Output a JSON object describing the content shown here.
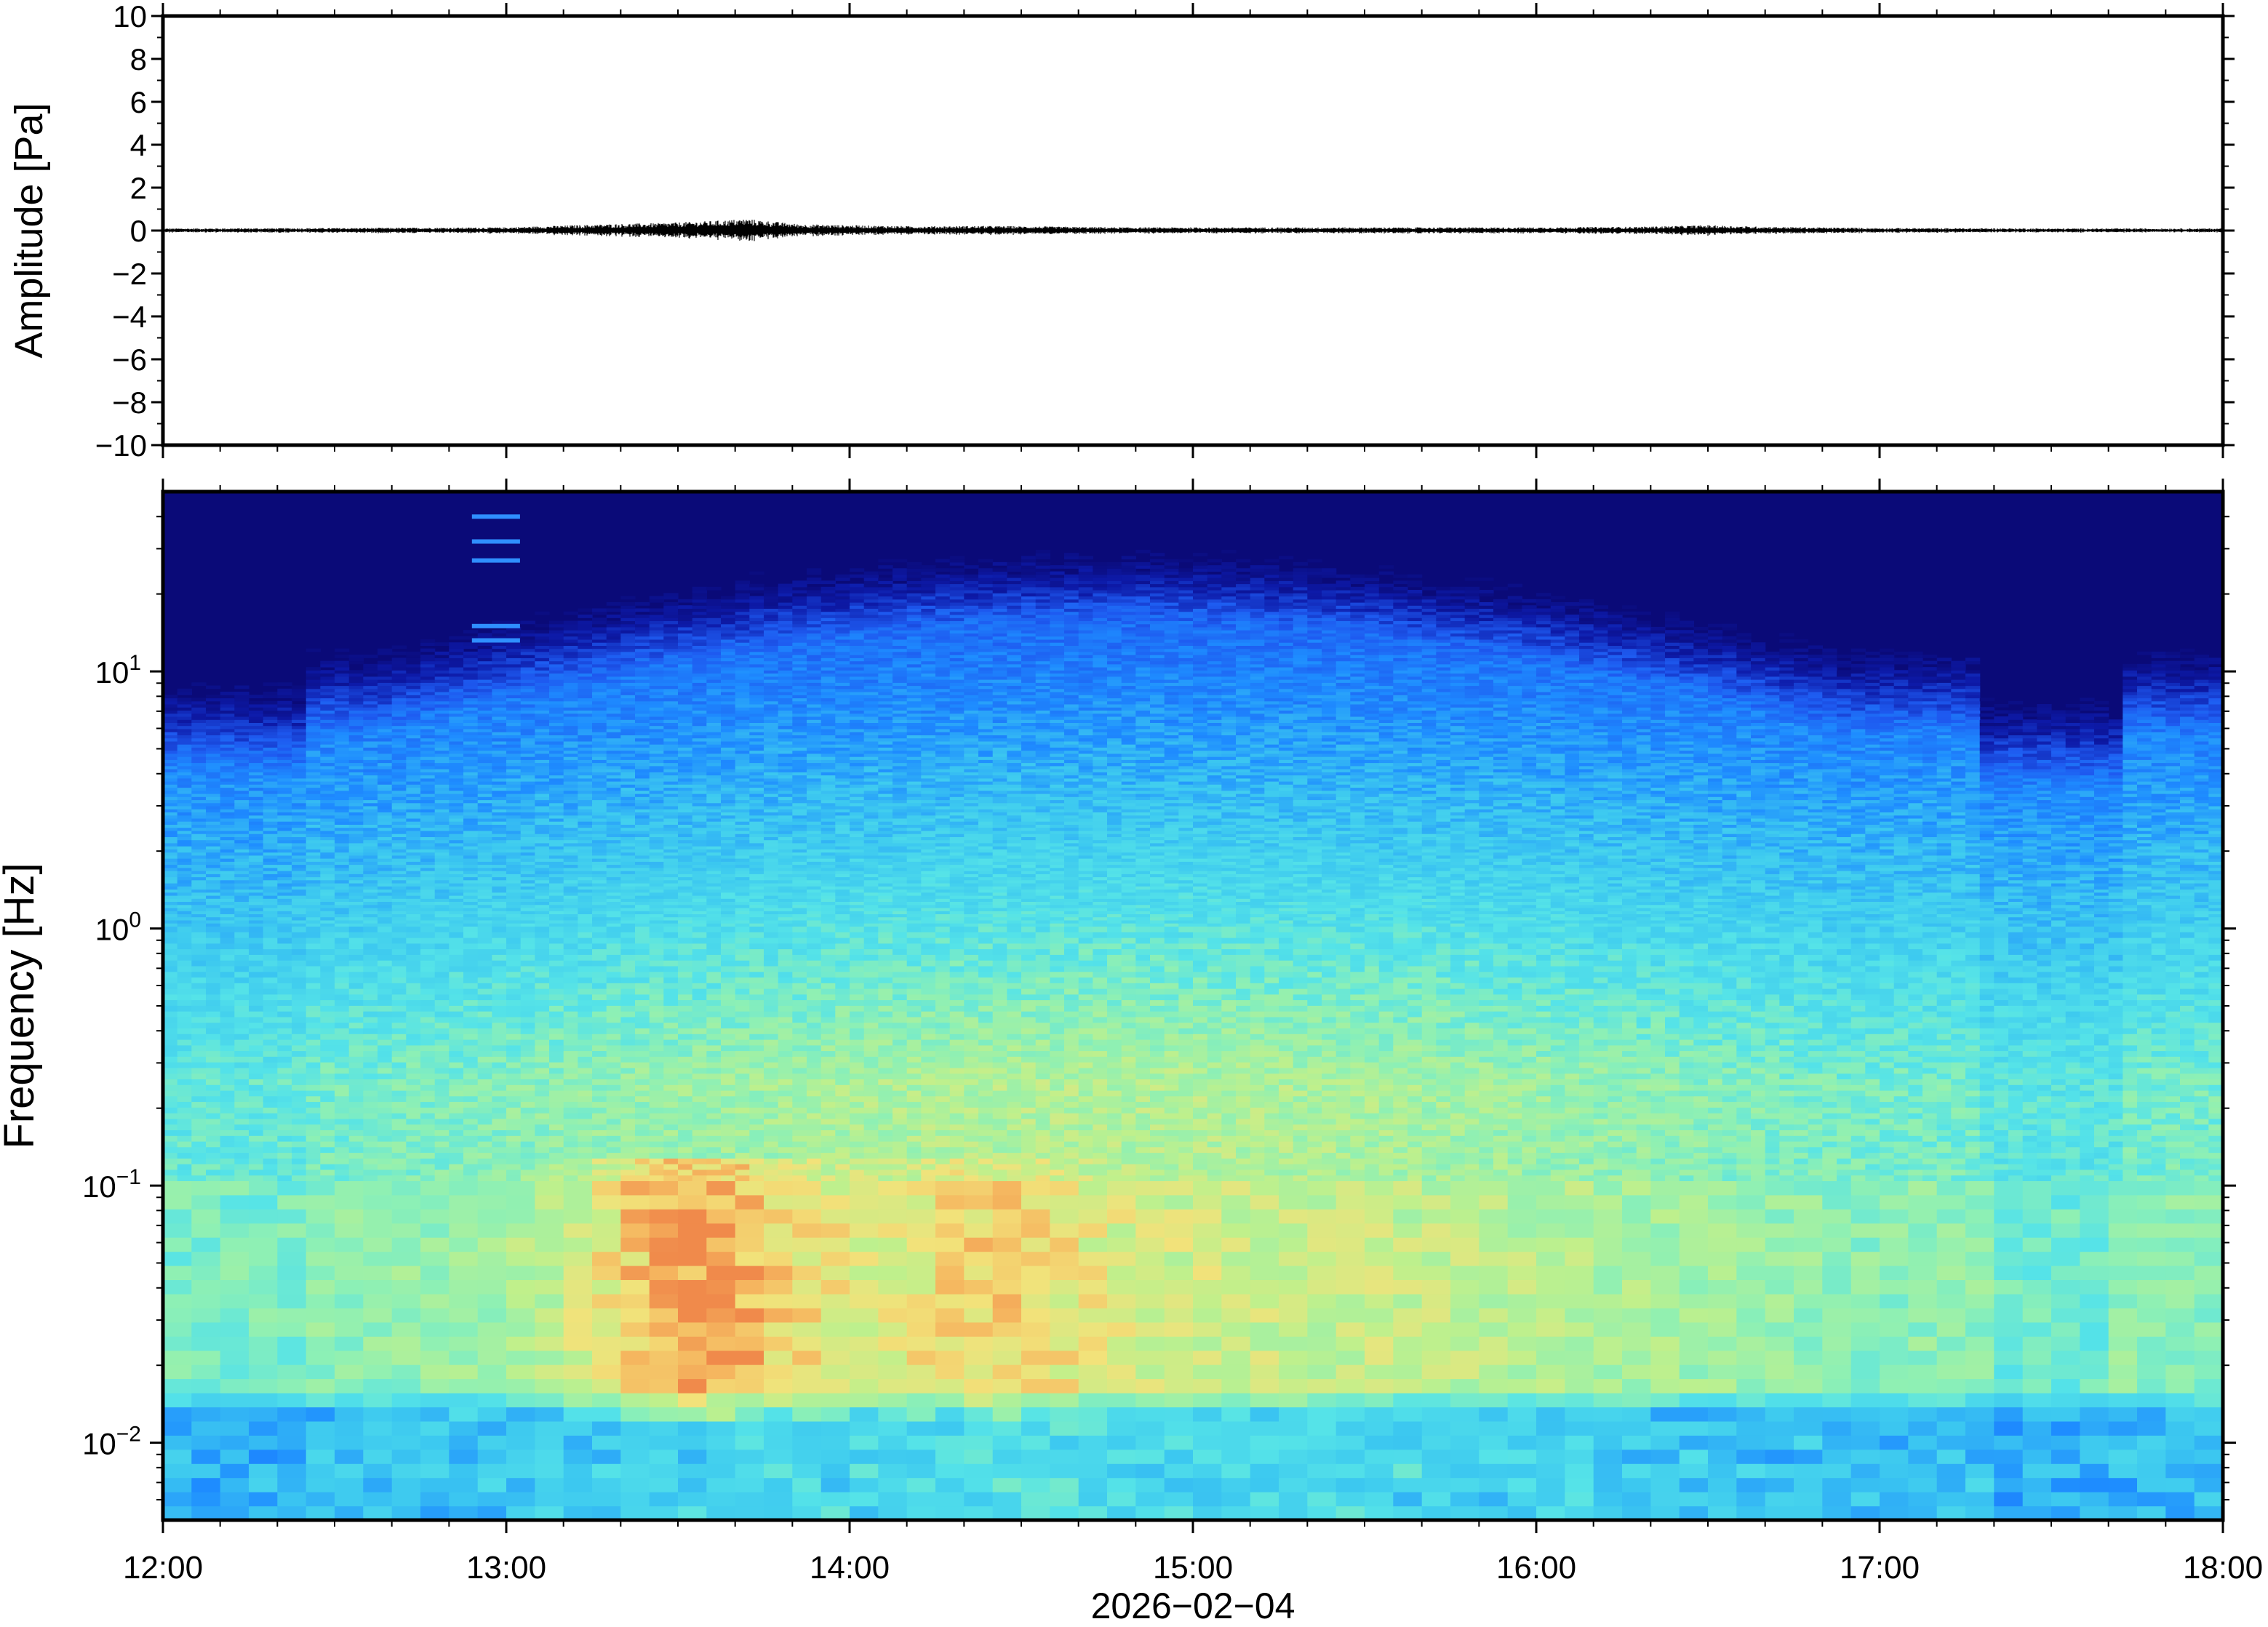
{
  "chart_data": [
    {
      "type": "line",
      "panel": "waveform",
      "ylabel": "Amplitude [Pa]",
      "ylim": [
        -10,
        10
      ],
      "yticks": [
        -10,
        -8,
        -6,
        -4,
        -2,
        0,
        2,
        4,
        6,
        8,
        10
      ],
      "ytick_labels": [
        "−10",
        "−8",
        "−6",
        "−4",
        "−2",
        "0",
        "2",
        "4",
        "6",
        "8",
        "10"
      ],
      "x_range": [
        "12:00",
        "18:00"
      ],
      "series": [
        {
          "x_hours": [
            12.0,
            12.5,
            13.0,
            13.3,
            13.45,
            13.6,
            13.7,
            13.85,
            14.0,
            14.2,
            14.4,
            14.8,
            15.0,
            15.5,
            16.0,
            16.3,
            16.5,
            16.6,
            16.8,
            17.0,
            17.5,
            18.0
          ],
          "envelope_pa": [
            0.1,
            0.12,
            0.15,
            0.3,
            0.35,
            0.45,
            0.55,
            0.3,
            0.25,
            0.2,
            0.22,
            0.15,
            0.15,
            0.15,
            0.15,
            0.18,
            0.25,
            0.2,
            0.15,
            0.12,
            0.1,
            0.1
          ]
        }
      ],
      "grid": false
    },
    {
      "type": "heatmap",
      "panel": "spectrogram",
      "ylabel": "Frequency [Hz]",
      "xlabel": "2026−02−04",
      "y_scale": "log",
      "ylim_hz": [
        0.005,
        50
      ],
      "yticks_hz": [
        0.01,
        0.1,
        1,
        10
      ],
      "ytick_labels": [
        {
          "base": "10",
          "exp": "−2"
        },
        {
          "base": "10",
          "exp": "−1"
        },
        {
          "base": "10",
          "exp": "0"
        },
        {
          "base": "10",
          "exp": "1"
        }
      ],
      "x_range": [
        "12:00",
        "18:00"
      ],
      "xtick_labels": [
        "12:00",
        "13:00",
        "14:00",
        "15:00",
        "16:00",
        "17:00",
        "18:00"
      ],
      "colormap": "jet-like (dark blue low → red high)",
      "colors": {
        "low": "#0a0a78",
        "mid_low": "#1e8cff",
        "mid": "#55e3e8",
        "mid_high": "#bff08c",
        "high": "#f2e27a",
        "peak": "#f08a4b"
      },
      "features": {
        "strongest_energy": "0.015–0.08 Hz around 13:20–14:30",
        "noise_floor_top": "~6–20 Hz (dark blue above)",
        "narrowband_lines": "13 Hz, 15 Hz, 27 Hz, 32 Hz, 40 Hz near 12:55–13:05"
      },
      "grid": false
    }
  ]
}
